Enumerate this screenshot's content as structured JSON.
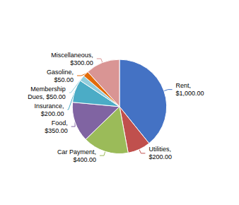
{
  "chart_data": {
    "type": "pie",
    "categories": [
      "Rent",
      "Utilities",
      "Car Payment",
      "Food",
      "Insurance",
      "Membership Dues",
      "Gasoline",
      "Miscellaneous"
    ],
    "values": [
      1000,
      200,
      400,
      350,
      200,
      50,
      50,
      300
    ],
    "value_labels": [
      "Rent,\n$1,000.00",
      "Utilities,\n$200.00",
      "Car Payment,\n$400.00",
      "Food,\n$350.00",
      "Insurance,\n$200.00",
      "Membership\nDues, $50.00",
      "Gasoline,\n$50.00",
      "Miscellaneous,\n$300.00"
    ],
    "colors": [
      "#4472C4",
      "#C0504D",
      "#9BBB59",
      "#8064A2",
      "#4BACC6",
      "#92CDDC",
      "#E26B0A",
      "#D99594"
    ],
    "data_labels": true
  }
}
